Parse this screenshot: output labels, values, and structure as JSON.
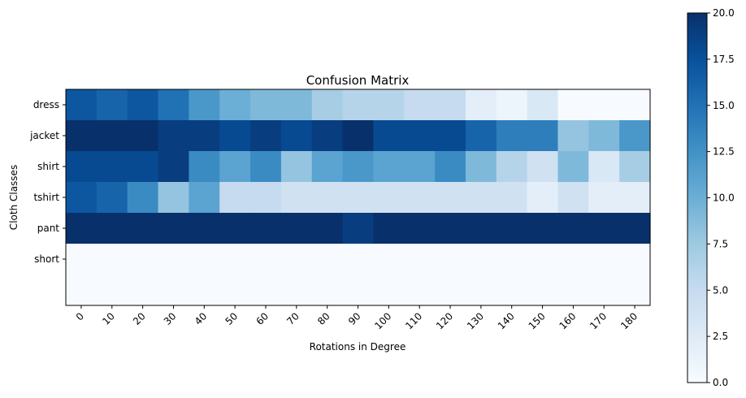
{
  "chart_data": {
    "type": "heatmap",
    "title": "Confusion Matrix",
    "xlabel": "Rotations in Degree",
    "ylabel": "Cloth Classes",
    "x_labels": [
      "0",
      "10",
      "20",
      "30",
      "40",
      "50",
      "60",
      "70",
      "80",
      "90",
      "100",
      "110",
      "120",
      "130",
      "140",
      "150",
      "160",
      "170",
      "180"
    ],
    "y_labels": [
      "dress",
      "jacket",
      "shirt",
      "tshirt",
      "pant",
      "short"
    ],
    "values": [
      [
        17,
        16,
        17,
        15,
        12,
        10,
        9,
        9,
        7,
        6,
        6,
        5,
        5,
        2,
        1,
        3,
        0,
        0,
        0
      ],
      [
        20,
        20,
        20,
        19,
        19,
        18,
        19,
        18,
        19,
        20,
        18,
        18,
        18,
        16,
        14,
        14,
        8,
        9,
        12
      ],
      [
        18,
        18,
        18,
        19,
        13,
        11,
        13,
        8,
        11,
        12,
        11,
        11,
        13,
        9,
        6,
        4,
        9,
        3,
        7
      ],
      [
        17,
        16,
        13,
        8,
        11,
        5,
        5,
        4,
        4,
        4,
        4,
        4,
        4,
        4,
        4,
        2,
        4,
        2,
        2
      ],
      [
        20,
        20,
        20,
        20,
        20,
        20,
        20,
        20,
        20,
        19,
        20,
        20,
        20,
        20,
        20,
        20,
        20,
        20,
        20
      ],
      [
        0,
        0,
        0,
        0,
        0,
        0,
        0,
        0,
        0,
        0,
        0,
        0,
        0,
        0,
        0,
        0,
        0,
        0,
        0
      ]
    ],
    "row_extent": 6.5,
    "colorscale": "Blues",
    "zlim": [
      0,
      20
    ],
    "colorbar_ticks": [
      "0.0",
      "2.5",
      "5.0",
      "7.5",
      "10.0",
      "12.5",
      "15.0",
      "17.5",
      "20.0"
    ],
    "colorbar_tick_values": [
      0,
      2.5,
      5,
      7.5,
      10,
      12.5,
      15,
      17.5,
      20
    ]
  }
}
